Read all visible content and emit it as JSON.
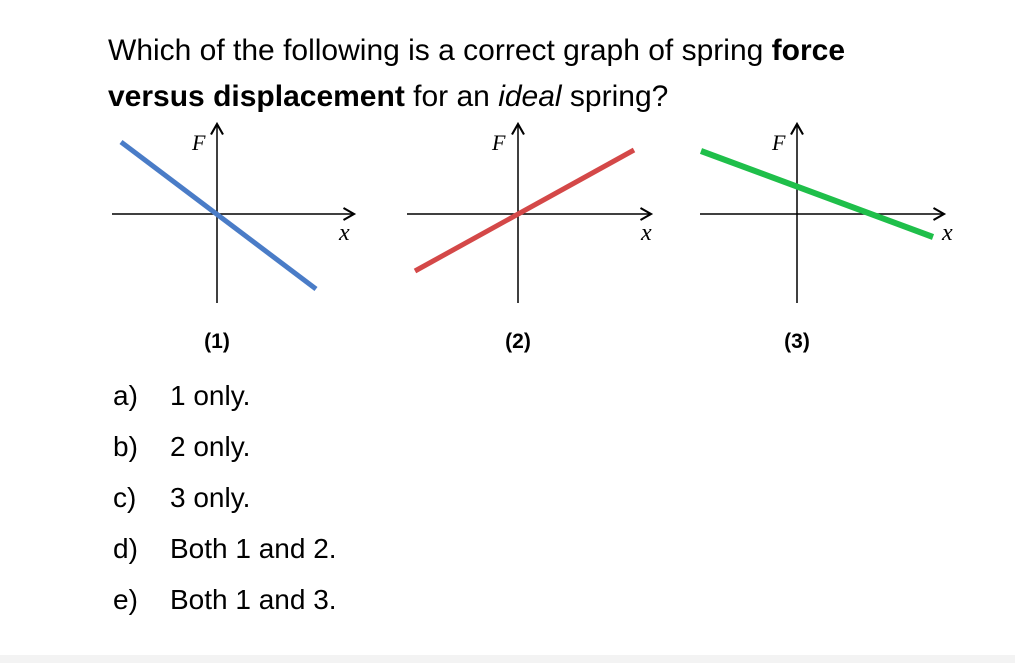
{
  "question": {
    "part1": "Which of the following is a correct graph of spring ",
    "bold1": "force",
    "bold2": "versus displacement",
    "part2": " for an ",
    "italic": "ideal",
    "part3": " spring?"
  },
  "graphs": [
    {
      "caption": "(1)",
      "y_label": "F",
      "x_label": "x",
      "line_color": "#4a7cc7",
      "slope": "negative",
      "through_origin": true
    },
    {
      "caption": "(2)",
      "y_label": "F",
      "x_label": "x",
      "line_color": "#d44848",
      "slope": "positive",
      "through_origin": true
    },
    {
      "caption": "(3)",
      "y_label": "F",
      "x_label": "x",
      "line_color": "#1fbf4a",
      "slope": "negative",
      "through_origin": false
    }
  ],
  "options": [
    {
      "letter": "a)",
      "text": "1 only."
    },
    {
      "letter": "b)",
      "text": "2 only."
    },
    {
      "letter": "c)",
      "text": "3 only."
    },
    {
      "letter": "d)",
      "text": "Both 1 and 2."
    },
    {
      "letter": "e)",
      "text": "Both 1 and 3."
    }
  ]
}
